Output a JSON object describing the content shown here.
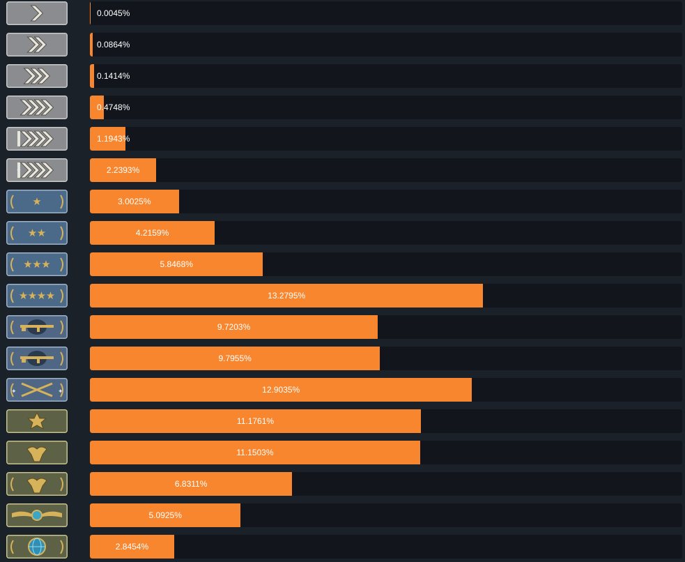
{
  "chart_data": {
    "type": "bar",
    "orientation": "horizontal",
    "title": "",
    "xlabel": "",
    "ylabel": "",
    "xlim": [
      0,
      20
    ],
    "value_suffix": "%",
    "categories": [
      "Silver I",
      "Silver II",
      "Silver III",
      "Silver IV",
      "Silver Elite",
      "Silver Elite Master",
      "Gold Nova I",
      "Gold Nova II",
      "Gold Nova III",
      "Gold Nova Master",
      "Master Guardian I",
      "Master Guardian II",
      "Master Guardian Elite",
      "Distinguished Master Guardian",
      "Legendary Eagle",
      "Legendary Eagle Master",
      "Supreme Master First Class",
      "The Global Elite"
    ],
    "values": [
      0.0045,
      0.0864,
      0.1414,
      0.4748,
      1.1943,
      2.2393,
      3.0025,
      4.2159,
      5.8468,
      13.2795,
      9.7203,
      9.7955,
      12.9035,
      11.1761,
      11.1503,
      6.8311,
      5.0925,
      2.8454
    ],
    "labels": [
      "0.0045%",
      "0.0864%",
      "0.1414%",
      "0.4748%",
      "1.1943%",
      "2.2393%",
      "3.0025%",
      "4.2159%",
      "5.8468%",
      "13.2795%",
      "9.7203%",
      "9.7955%",
      "12.9035%",
      "11.1761%",
      "11.1503%",
      "6.8311%",
      "5.0925%",
      "2.8454%"
    ],
    "icons": [
      "silver-1-chevron-icon",
      "silver-2-chevron-icon",
      "silver-3-chevron-icon",
      "silver-4-chevron-icon",
      "silver-elite-chevron-icon",
      "silver-elite-master-chevron-icon",
      "gold-nova-1-star-icon",
      "gold-nova-2-star-icon",
      "gold-nova-3-star-icon",
      "gold-nova-master-star-icon",
      "master-guardian-1-rifle-icon",
      "master-guardian-2-rifle-icon",
      "master-guardian-elite-crossed-rifles-icon",
      "distinguished-master-guardian-star-icon",
      "legendary-eagle-icon",
      "legendary-eagle-master-icon",
      "supreme-wings-icon",
      "global-elite-globe-icon"
    ],
    "colors": {
      "background": "#1b2129",
      "track": "#12161c",
      "bar": "#f7862e",
      "label": "#ffffff",
      "silver_badge": "#8a8c8f",
      "nova_badge": "#4b6a8a",
      "guardian_badge": "#4f6784",
      "elite_badge": "#5d6247",
      "gold": "#d6b25a"
    }
  }
}
